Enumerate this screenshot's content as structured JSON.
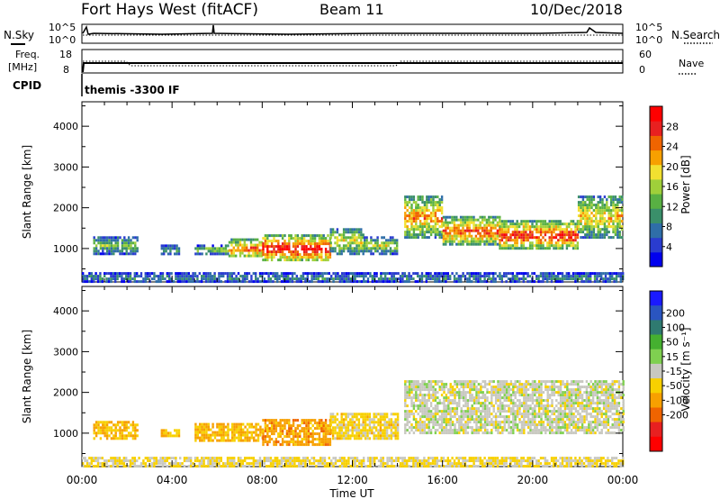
{
  "header": {
    "station": "Fort Hays West (fitACF)",
    "beam": "Beam 11",
    "date": "10/Dec/2018"
  },
  "top_panels": {
    "nsky_label": "N.Sky",
    "nsearch_label": "N.Search",
    "noise_ticks": [
      "10^5",
      "10^0"
    ],
    "freq_label_line1": "Freq.",
    "freq_label_line2": "[MHz]",
    "freq_ticks": [
      "18",
      "8"
    ],
    "nave_label": "Nave",
    "nave_ticks": [
      "60",
      "0"
    ],
    "cpid_label": "CPID",
    "cpid_value": "themis -3300 IF"
  },
  "chart_data": [
    {
      "type": "heatmap",
      "name": "power",
      "xlabel": "",
      "ylabel": "Slant Range [km]",
      "xlim": [
        0,
        24
      ],
      "ylim": [
        180,
        4600
      ],
      "yticks": [
        1000,
        2000,
        3000,
        4000
      ],
      "colorbar": {
        "label": "Power [dB]",
        "range": [
          0,
          32
        ],
        "ticks": [
          4,
          8,
          12,
          16,
          20,
          24,
          28
        ],
        "colors": [
          "#0000ee",
          "#2a3ccf",
          "#2f6ea8",
          "#3a8f6a",
          "#58b043",
          "#9fcf3a",
          "#f2e030",
          "#f7a000",
          "#f06400",
          "#e82020",
          "#ff0000"
        ]
      },
      "echo_regions": [
        {
          "t0": 0.5,
          "t1": 2.5,
          "r0": 900,
          "r1": 1300,
          "level": 12
        },
        {
          "t0": 3.5,
          "t1": 4.3,
          "r0": 900,
          "r1": 1100,
          "level": 10
        },
        {
          "t0": 5.0,
          "t1": 6.5,
          "r0": 900,
          "r1": 1100,
          "level": 14
        },
        {
          "t0": 6.5,
          "t1": 8.0,
          "r0": 800,
          "r1": 1250,
          "level": 22
        },
        {
          "t0": 8.0,
          "t1": 11.0,
          "r0": 700,
          "r1": 1350,
          "level": 26
        },
        {
          "t0": 11.0,
          "t1": 12.5,
          "r0": 900,
          "r1": 1500,
          "level": 16
        },
        {
          "t0": 12.5,
          "t1": 14.0,
          "r0": 900,
          "r1": 1300,
          "level": 14
        },
        {
          "t0": 14.3,
          "t1": 16.0,
          "r0": 1300,
          "r1": 2300,
          "level": 20
        },
        {
          "t0": 16.0,
          "t1": 18.5,
          "r0": 1100,
          "r1": 1800,
          "level": 22
        },
        {
          "t0": 18.5,
          "t1": 22.0,
          "r0": 1000,
          "r1": 1700,
          "level": 24
        },
        {
          "t0": 22.0,
          "t1": 24.0,
          "r0": 1300,
          "r1": 2300,
          "level": 18
        },
        {
          "t0": 0.0,
          "t1": 24.0,
          "r0": 200,
          "r1": 420,
          "level": 8
        }
      ]
    },
    {
      "type": "heatmap",
      "name": "velocity",
      "xlabel": "Time UT",
      "ylabel": "Slant Range [km]",
      "xlim": [
        0,
        24
      ],
      "ylim": [
        180,
        4600
      ],
      "yticks": [
        1000,
        2000,
        3000,
        4000
      ],
      "xticks": [
        "00:00",
        "04:00",
        "08:00",
        "12:00",
        "16:00",
        "20:00",
        "00:00"
      ],
      "colorbar": {
        "label": "Velocity [m s⁻¹]",
        "ticks": [
          "200",
          "100",
          "50",
          "15",
          "-15",
          "-50",
          "-100",
          "-200"
        ],
        "colors": [
          "#1a1aff",
          "#2a55c0",
          "#2f7a70",
          "#45b030",
          "#7fd050",
          "#c8c8c0",
          "#f7d000",
          "#f7a000",
          "#f06400",
          "#e82020",
          "#ff0000"
        ]
      },
      "echo_regions": [
        {
          "t0": 0.5,
          "t1": 2.5,
          "r0": 900,
          "r1": 1300,
          "vel": -60
        },
        {
          "t0": 3.5,
          "t1": 4.3,
          "r0": 950,
          "r1": 1100,
          "vel": -60
        },
        {
          "t0": 5.0,
          "t1": 8.0,
          "r0": 800,
          "r1": 1250,
          "vel": -70
        },
        {
          "t0": 8.0,
          "t1": 11.0,
          "r0": 700,
          "r1": 1350,
          "vel": -90
        },
        {
          "t0": 11.0,
          "t1": 14.0,
          "r0": 900,
          "r1": 1500,
          "vel": -40
        },
        {
          "t0": 14.3,
          "t1": 24.0,
          "r0": 1000,
          "r1": 2300,
          "vel": 0
        },
        {
          "t0": 0.0,
          "t1": 24.0,
          "r0": 200,
          "r1": 420,
          "vel": -30
        }
      ]
    }
  ]
}
